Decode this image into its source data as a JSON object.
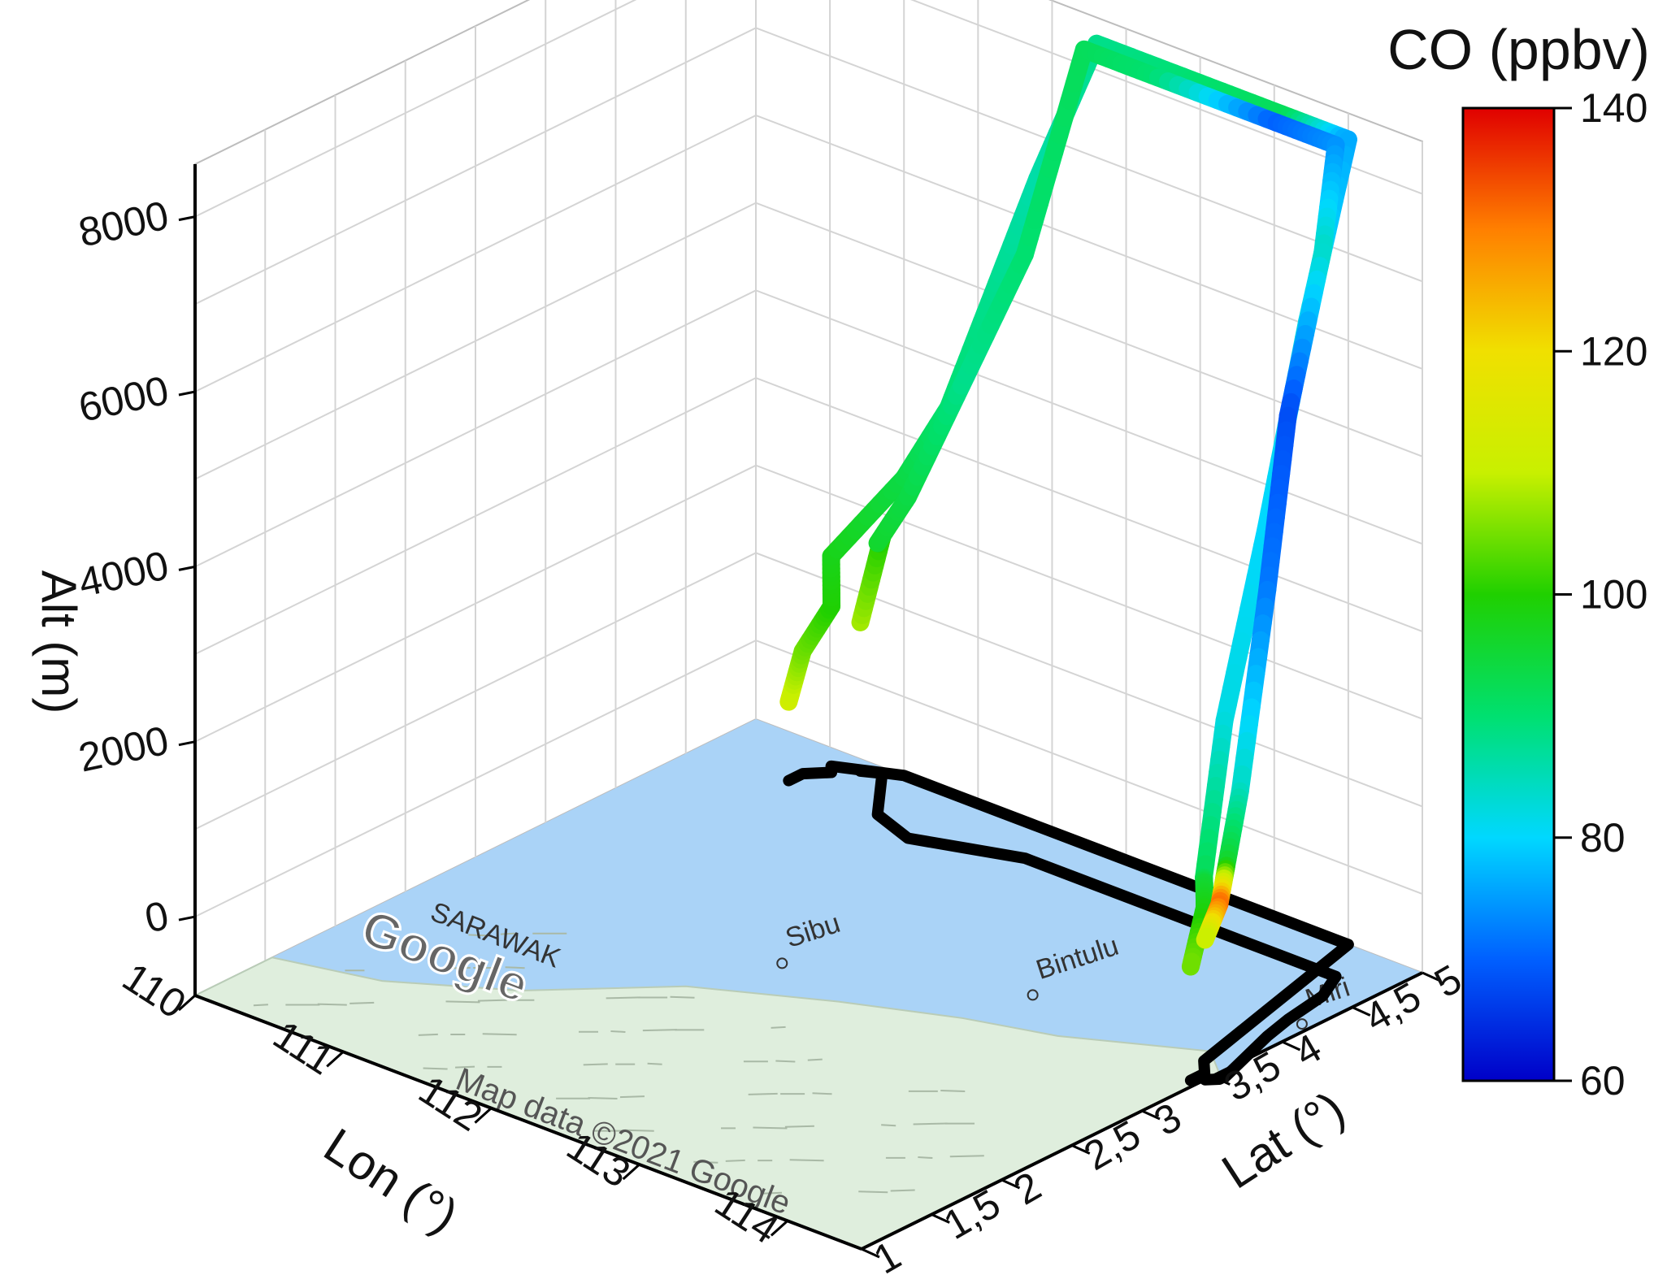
{
  "chart_data": {
    "type": "3d-line",
    "zlabel": "Alt (m)",
    "xlabel": "Lon (°)",
    "ylabel": "Lat (°)",
    "xlim": [
      110,
      114.5
    ],
    "ylim": [
      1,
      5
    ],
    "zlim": [
      -900,
      8600
    ],
    "x_ticks": [
      "110",
      "111",
      "112",
      "113",
      "114"
    ],
    "y_ticks": [
      "1",
      "1,5",
      "2",
      "2,5",
      "3",
      "3,5",
      "4",
      "4,5",
      "5"
    ],
    "z_ticks": [
      "0",
      "2000",
      "4000",
      "6000",
      "8000"
    ],
    "colorbar": {
      "title": "CO (ppbv)",
      "min": 60,
      "max": 140,
      "ticks": [
        "60",
        "80",
        "100",
        "120",
        "140"
      ],
      "colormap": [
        "#0000c8",
        "#0060ff",
        "#00d8ff",
        "#00e070",
        "#20d000",
        "#c8f000",
        "#f0e000",
        "#ff8000",
        "#e00000"
      ]
    },
    "map": {
      "places": [
        "Sibu",
        "Bintulu",
        "Miri"
      ],
      "region_label": "SARAWAK",
      "logo": "Google",
      "credit": "Map data ©2021 Google"
    },
    "ground_track_color": "#000000",
    "series": [
      {
        "points": [
          {
            "lon": 110.6,
            "lat": 4.6,
            "alt": 0,
            "co": 112
          },
          {
            "lon": 110.6,
            "lat": 4.7,
            "alt": 500,
            "co": 105
          },
          {
            "lon": 110.7,
            "lat": 4.8,
            "alt": 1000,
            "co": 100
          },
          {
            "lon": 110.65,
            "lat": 4.85,
            "alt": 1500,
            "co": 98
          },
          {
            "lon": 111.0,
            "lat": 5.0,
            "alt": 2500,
            "co": 94
          },
          {
            "lon": 111.3,
            "lat": 5.0,
            "alt": 3500,
            "co": 90
          },
          {
            "lon": 111.6,
            "lat": 5.0,
            "alt": 5000,
            "co": 88
          },
          {
            "lon": 111.9,
            "lat": 5.0,
            "alt": 6500,
            "co": 86
          },
          {
            "lon": 112.3,
            "lat": 5.0,
            "alt": 8300,
            "co": 88
          },
          {
            "lon": 113.0,
            "lat": 5.0,
            "alt": 8300,
            "co": 90
          },
          {
            "lon": 113.6,
            "lat": 5.0,
            "alt": 8300,
            "co": 92
          },
          {
            "lon": 114.0,
            "lat": 5.0,
            "alt": 8300,
            "co": 76
          },
          {
            "lon": 114.1,
            "lat": 4.6,
            "alt": 6600,
            "co": 82
          },
          {
            "lon": 114.2,
            "lat": 4.2,
            "alt": 4600,
            "co": 80
          },
          {
            "lon": 114.3,
            "lat": 3.8,
            "alt": 2800,
            "co": 82
          },
          {
            "lon": 114.35,
            "lat": 3.6,
            "alt": 1200,
            "co": 92
          },
          {
            "lon": 114.4,
            "lat": 3.55,
            "alt": 1200,
            "co": 95
          },
          {
            "lon": 114.45,
            "lat": 3.5,
            "alt": 1000,
            "co": 98
          },
          {
            "lon": 114.45,
            "lat": 3.4,
            "alt": 400,
            "co": 105
          }
        ]
      },
      {
        "points": [
          {
            "lon": 110.8,
            "lat": 4.9,
            "alt": 800,
            "co": 108
          },
          {
            "lon": 110.9,
            "lat": 4.95,
            "alt": 1800,
            "co": 100
          },
          {
            "lon": 111.2,
            "lat": 4.6,
            "alt": 2200,
            "co": 96
          },
          {
            "lon": 111.5,
            "lat": 4.5,
            "alt": 3000,
            "co": 94
          },
          {
            "lon": 111.8,
            "lat": 4.6,
            "alt": 4500,
            "co": 88
          },
          {
            "lon": 112.1,
            "lat": 4.7,
            "alt": 6000,
            "co": 90
          },
          {
            "lon": 112.5,
            "lat": 4.7,
            "alt": 8600,
            "co": 92
          },
          {
            "lon": 113.0,
            "lat": 4.7,
            "alt": 8600,
            "co": 90
          },
          {
            "lon": 113.8,
            "lat": 4.7,
            "alt": 8600,
            "co": 70
          },
          {
            "lon": 114.2,
            "lat": 4.7,
            "alt": 8600,
            "co": 74
          },
          {
            "lon": 114.3,
            "lat": 4.5,
            "alt": 7600,
            "co": 84
          },
          {
            "lon": 114.35,
            "lat": 4.2,
            "alt": 6000,
            "co": 68
          },
          {
            "lon": 114.4,
            "lat": 4.0,
            "alt": 4200,
            "co": 72
          },
          {
            "lon": 114.5,
            "lat": 3.7,
            "alt": 2200,
            "co": 84
          },
          {
            "lon": 114.55,
            "lat": 3.55,
            "alt": 1500,
            "co": 96
          },
          {
            "lon": 114.55,
            "lat": 3.5,
            "alt": 1100,
            "co": 132
          },
          {
            "lon": 114.5,
            "lat": 3.45,
            "alt": 700,
            "co": 110
          }
        ]
      }
    ]
  }
}
